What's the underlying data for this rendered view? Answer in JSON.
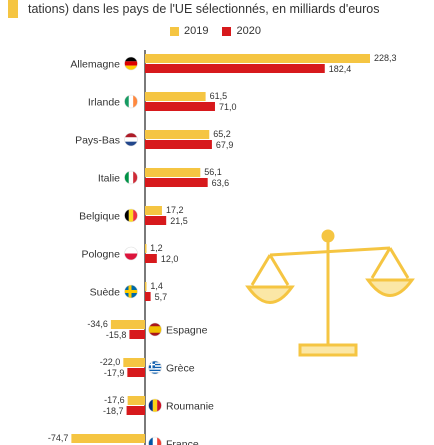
{
  "header": {
    "subtitle": "tations) dans les pays de l'UE sélectionnés, en milliards d'euros"
  },
  "colors": {
    "y2019": "#f5c542",
    "y2020": "#d7191c",
    "scale_icon": "#f5c542"
  },
  "chart_data": {
    "type": "bar",
    "orientation": "horizontal",
    "title": "",
    "xlabel": "",
    "ylabel": "",
    "categories": [
      "Allemagne",
      "Irlande",
      "Pays-Bas",
      "Italie",
      "Belgique",
      "Pologne",
      "Suède",
      "Espagne",
      "Grèce",
      "Roumanie",
      "France"
    ],
    "flags": [
      "flag-germany-icon",
      "flag-ireland-icon",
      "flag-netherlands-icon",
      "flag-italy-icon",
      "flag-belgium-icon",
      "flag-poland-icon",
      "flag-sweden-icon",
      "flag-spain-icon",
      "flag-greece-icon",
      "flag-romania-icon",
      "flag-france-icon"
    ],
    "series": [
      {
        "name": "2019",
        "values": [
          228.3,
          61.5,
          65.2,
          56.1,
          17.2,
          1.2,
          1.4,
          -34.6,
          -22.0,
          -17.6,
          -74.7
        ]
      },
      {
        "name": "2020",
        "values": [
          182.4,
          71.0,
          67.9,
          63.6,
          21.5,
          12.0,
          5.7,
          -15.8,
          -17.9,
          -18.7,
          null
        ]
      }
    ],
    "labels_2019": [
      "228,3",
      "61,5",
      "65,2",
      "56,1",
      "17,2",
      "1,2",
      "1,4",
      "-34,6",
      "-22,0",
      "-17,6",
      "-74,7"
    ],
    "labels_2020": [
      "182,4",
      "71,0",
      "67,9",
      "63,6",
      "21,5",
      "12,0",
      "5,7",
      "-15,8",
      "-17,9",
      "-18,7",
      ""
    ],
    "legend": {
      "position": "top-center",
      "entries": [
        "2019",
        "2020"
      ]
    },
    "grid": false
  }
}
